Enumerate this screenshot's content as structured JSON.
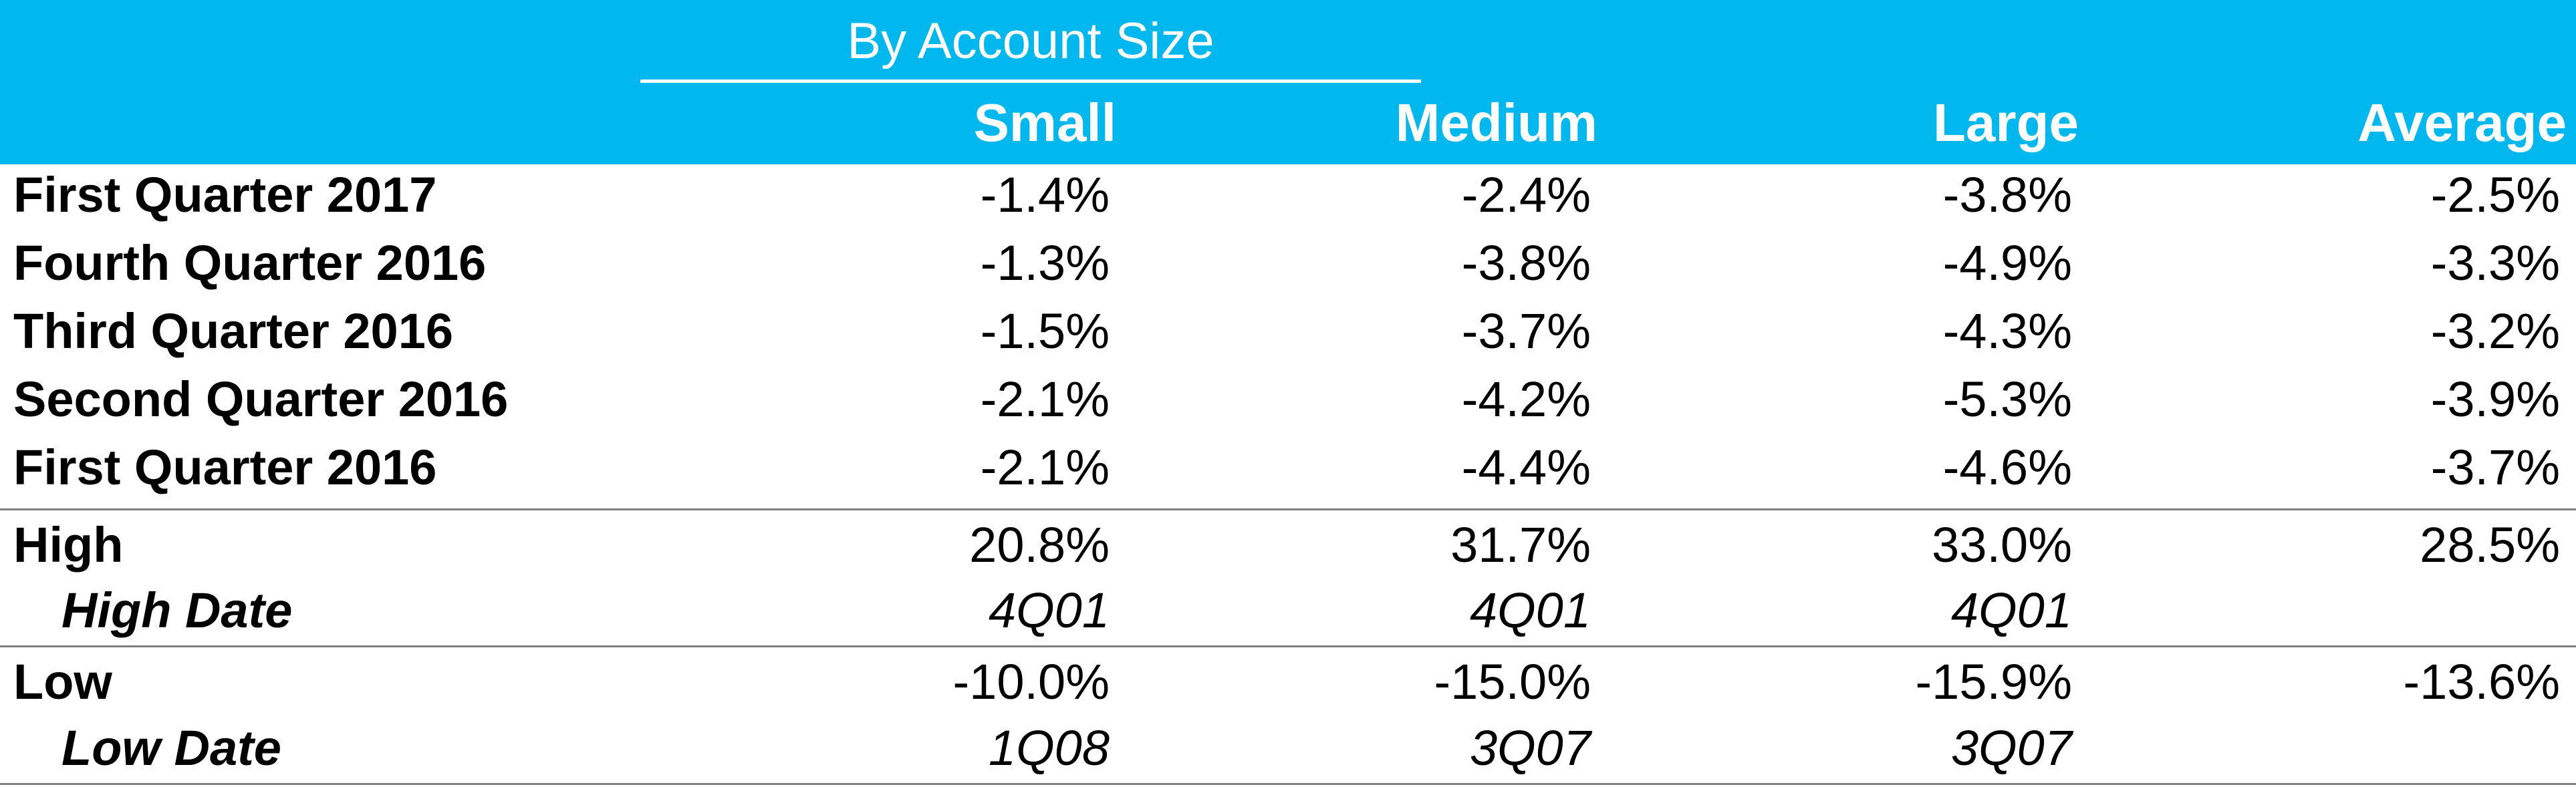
{
  "chart_data": {
    "type": "table",
    "header": {
      "group_title": "By Account Size",
      "columns": [
        "Small",
        "Medium",
        "Large",
        "Average"
      ]
    },
    "rows": [
      {
        "label": "First Quarter 2017",
        "values": [
          "-1.4%",
          "-2.4%",
          "-3.8%",
          "-2.5%"
        ],
        "style": "normal"
      },
      {
        "label": "Fourth Quarter 2016",
        "values": [
          "-1.3%",
          "-3.8%",
          "-4.9%",
          "-3.3%"
        ],
        "style": "normal"
      },
      {
        "label": "Third Quarter 2016",
        "values": [
          "-1.5%",
          "-3.7%",
          "-4.3%",
          "-3.2%"
        ],
        "style": "normal"
      },
      {
        "label": "Second Quarter 2016",
        "values": [
          "-2.1%",
          "-4.2%",
          "-5.3%",
          "-3.9%"
        ],
        "style": "normal"
      },
      {
        "label": "First Quarter 2016",
        "values": [
          "-2.1%",
          "-4.4%",
          "-4.6%",
          "-3.7%"
        ],
        "style": "normal"
      },
      {
        "label": "High",
        "values": [
          "20.8%",
          "31.7%",
          "33.0%",
          "28.5%"
        ],
        "style": "normal"
      },
      {
        "label": "High Date",
        "values": [
          "4Q01",
          "4Q01",
          "4Q01",
          ""
        ],
        "style": "sub"
      },
      {
        "label": "Low",
        "values": [
          "-10.0%",
          "-15.0%",
          "-15.9%",
          "-13.6%"
        ],
        "style": "normal"
      },
      {
        "label": "Low Date",
        "values": [
          "1Q08",
          "3Q07",
          "3Q07",
          ""
        ],
        "style": "sub"
      }
    ],
    "colors": {
      "header_background": "#00B8EE",
      "header_text": "#ffffff",
      "separator": "#808080"
    }
  }
}
